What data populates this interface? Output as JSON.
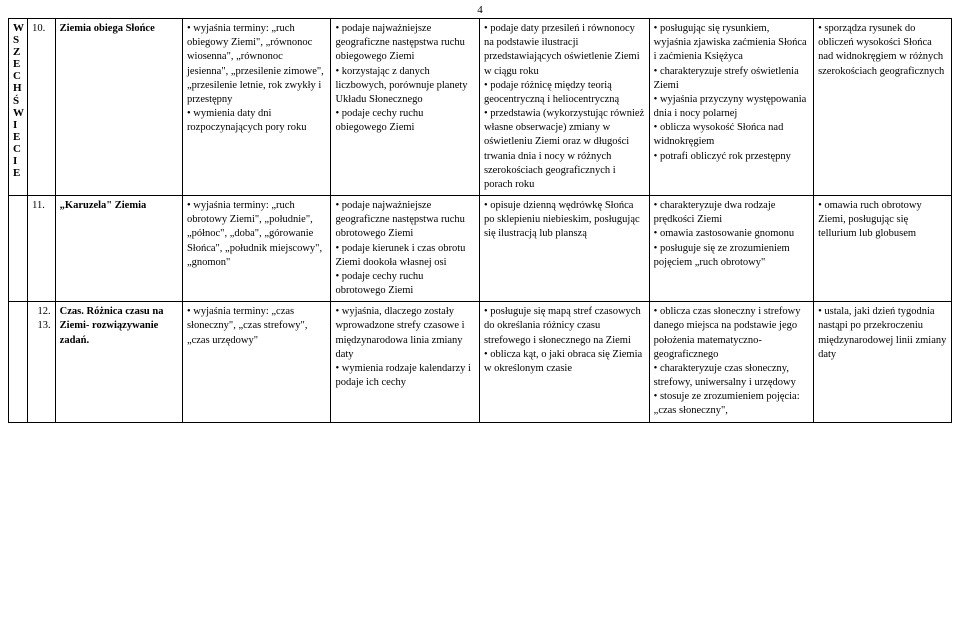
{
  "page_number": "4",
  "side_label": "W S Z E C H Ś W I E C I E",
  "rows": [
    {
      "num": "10.",
      "topic_bold": "Ziemia obiega Słońce",
      "c1": [
        "wyjaśnia terminy: „ruch obiegowy Ziemi\", „równonoc wiosenna\", „równonoc jesienna\", „przesilenie zimowe\", „przesilenie letnie, rok zwykły i przestępny",
        "wymienia daty dni rozpoczynających pory roku"
      ],
      "c2": [
        "podaje najważniejsze geograficzne następstwa ruchu obiegowego Ziemi",
        "korzystając z danych liczbowych, porównuje planety Układu Słonecznego",
        "podaje cechy ruchu obiegowego Ziemi"
      ],
      "c3": [
        "podaje daty przesileń i równonocy na podstawie ilustracji przedstawiających oświetlenie Ziemi w ciągu roku",
        "podaje różnicę między teorią geocentryczną i heliocentryczną",
        "przedstawia (wykorzystując również własne obserwacje) zmiany w oświetleniu Ziemi oraz w długości trwania dnia i nocy w różnych szerokościach geograficznych i porach roku"
      ],
      "c4": [
        "posługując się rysunkiem, wyjaśnia zjawiska zaćmienia Słońca i zaćmienia Księżyca",
        "charakteryzuje strefy oświetlenia Ziemi",
        "wyjaśnia przyczyny występowania dnia i nocy polarnej",
        "oblicza wysokość Słońca nad widnokręgiem",
        "potrafi obliczyć rok przestępny"
      ],
      "c5": [
        "sporządza rysunek do obliczeń wysokości Słońca nad widnokręgiem w różnych szerokościach geograficznych"
      ]
    },
    {
      "num": "11.",
      "topic_bold": "„Karuzela\" Ziemia",
      "c1": [
        "wyjaśnia terminy: „ruch obrotowy Ziemi\", „południe\", „północ\", „doba\", „górowanie Słońca\", „południk miejscowy\", „gnomon\""
      ],
      "c2": [
        "podaje najważniejsze geograficzne następstwa ruchu obrotowego Ziemi",
        "podaje kierunek i czas obrotu Ziemi dookoła własnej osi",
        "podaje cechy ruchu obrotowego Ziemi"
      ],
      "c3": [
        "opisuje dzienną wędrówkę Słońca po sklepieniu niebieskim, posługując się ilustracją lub planszą"
      ],
      "c4": [
        "charakteryzuje dwa rodzaje prędkości Ziemi",
        "omawia zastosowanie gnomonu",
        "posługuje się ze zrozumieniem pojęciem „ruch obrotowy\""
      ],
      "c5": [
        "omawia ruch obrotowy Ziemi, posługując się tellurium lub globusem"
      ]
    },
    {
      "num_multi": [
        "12.",
        "13."
      ],
      "topic_parts": [
        "Czas. Różnica czasu na Ziemi- rozwiązywanie zadań."
      ],
      "c1": [
        "wyjaśnia terminy: „czas słoneczny\", „czas strefowy\", „czas urzędowy\""
      ],
      "c2": [
        "wyjaśnia, dlaczego zostały wprowadzone strefy czasowe i międzynarodowa linia zmiany daty",
        "wymienia rodzaje kalendarzy i podaje ich cechy"
      ],
      "c3": [
        "posługuje się mapą stref czasowych do określania różnicy czasu strefowego i słonecznego na Ziemi",
        "oblicza kąt, o jaki obraca się Ziemia w określonym czasie"
      ],
      "c4": [
        "oblicza czas słoneczny i strefowy danego miejsca na podstawie jego położenia matematyczno-geograficznego",
        "charakteryzuje czas słoneczny, strefowy, uniwersalny i urzędowy",
        "stosuje ze zrozumieniem pojęcia: „czas słoneczny\","
      ],
      "c5": [
        "ustala, jaki dzień tygodnia nastąpi po przekroczeniu międzynarodowej linii zmiany daty"
      ]
    }
  ]
}
